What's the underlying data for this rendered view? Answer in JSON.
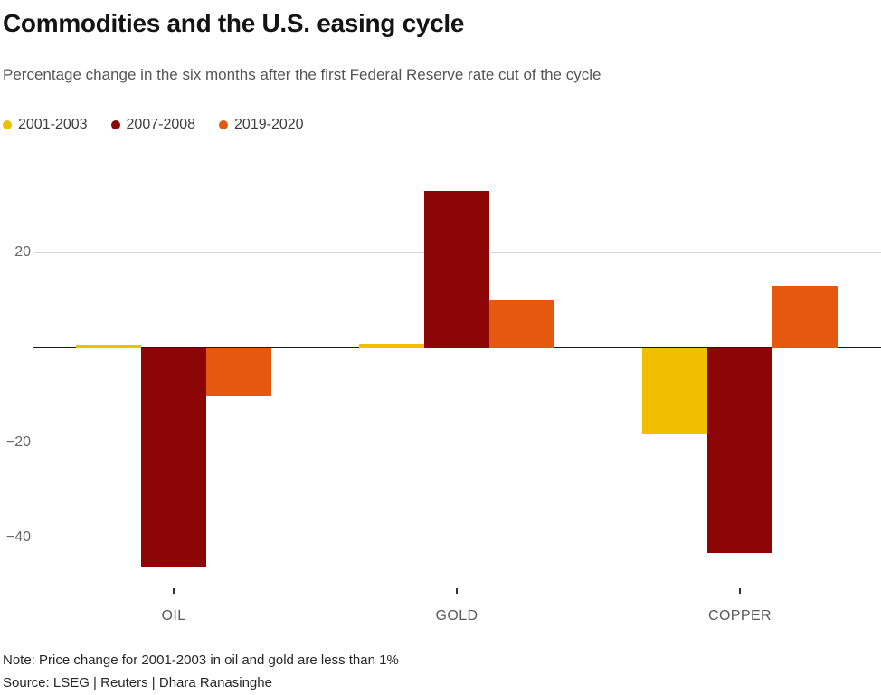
{
  "header": {
    "title": "Commodities and the U.S. easing cycle",
    "subtitle": "Percentage change in the six months after the first Federal Reserve rate cut of the cycle"
  },
  "chart_data": {
    "type": "bar",
    "title": "Commodities and the U.S. easing cycle",
    "subtitle": "Percentage change in the six months after the first Federal Reserve rate cut of the cycle",
    "categories": [
      "OIL",
      "GOLD",
      "COPPER"
    ],
    "series": [
      {
        "name": "2001-2003",
        "color": "#F0C000",
        "values": [
          0.5,
          0.7,
          -18
        ]
      },
      {
        "name": "2007-2008",
        "color": "#8B0605",
        "values": [
          -46,
          33,
          -43
        ]
      },
      {
        "name": "2019-2020",
        "color": "#E5580F",
        "values": [
          -10,
          10,
          13
        ]
      }
    ],
    "yticks": [
      20,
      -20,
      -40
    ],
    "ylim": [
      -48,
      37
    ],
    "grid": true,
    "legend_position": "top-left",
    "zero_line_color": "#1a1a1a",
    "gridline_color": "#d9d9d9"
  },
  "footer": {
    "note": "Note: Price change for 2001-2003 in oil and gold are less than 1%",
    "source": "Source: LSEG | Reuters | Dhara Ranasinghe"
  }
}
